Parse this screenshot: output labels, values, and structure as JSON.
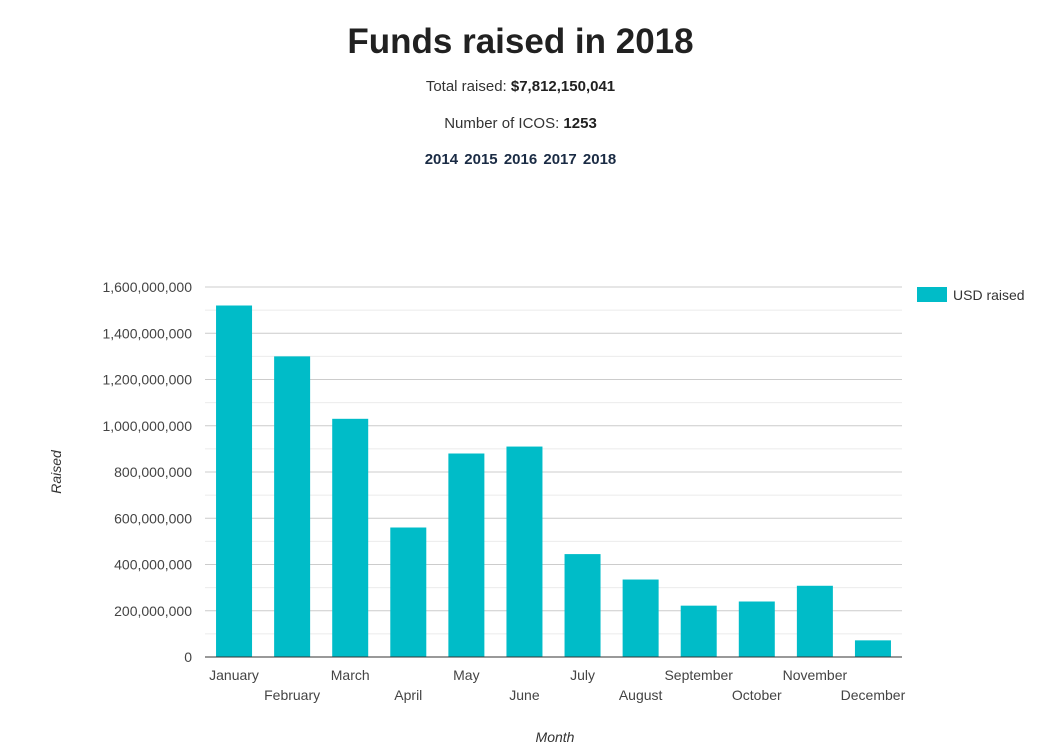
{
  "header": {
    "title": "Funds raised in 2018",
    "total_label": "Total raised:",
    "total_value": "$7,812,150,041",
    "count_label": "Number of ICOS:",
    "count_value": "1253",
    "years": [
      "2014",
      "2015",
      "2016",
      "2017",
      "2018"
    ]
  },
  "colors": {
    "bar": "#00bcc8",
    "grid": "#cccccc",
    "minor_grid": "#ebebeb",
    "axis": "#333333"
  },
  "chart_data": {
    "type": "bar",
    "categories": [
      "January",
      "February",
      "March",
      "April",
      "May",
      "June",
      "July",
      "August",
      "September",
      "October",
      "November",
      "December"
    ],
    "series": [
      {
        "name": "USD raised",
        "values": [
          1520000000,
          1300000000,
          1030000000,
          560000000,
          880000000,
          910000000,
          445000000,
          335000000,
          222000000,
          240000000,
          308000000,
          72000000
        ]
      }
    ],
    "xlabel": "Month",
    "ylabel": "Raised",
    "ylim": [
      0,
      1600000000
    ],
    "yticks": [
      0,
      200000000,
      400000000,
      600000000,
      800000000,
      1000000000,
      1200000000,
      1400000000,
      1600000000
    ],
    "ytick_labels": [
      "0",
      "200,000,000",
      "400,000,000",
      "600,000,000",
      "800,000,000",
      "1,000,000,000",
      "1,200,000,000",
      "1,400,000,000",
      "1,600,000,000"
    ],
    "grid": true,
    "legend": "right"
  }
}
